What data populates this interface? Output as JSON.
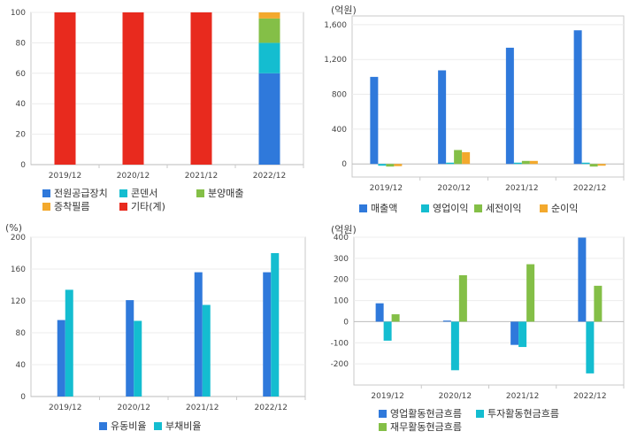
{
  "colors": {
    "blue": "#2f79db",
    "cyan": "#14bdd0",
    "green": "#84bf47",
    "orange": "#f3a92d",
    "red": "#e82a1e"
  },
  "chart_data": [
    {
      "type": "bar",
      "stacked": true,
      "unit": "",
      "categories": [
        "2019/12",
        "2020/12",
        "2021/12",
        "2022/12"
      ],
      "ylim": [
        0,
        100
      ],
      "yticks": [
        "0",
        "20",
        "40",
        "60",
        "80",
        "100"
      ],
      "series": [
        {
          "name": "전원공급장치",
          "color": "#2f79db",
          "values": [
            0,
            0,
            0,
            60
          ]
        },
        {
          "name": "콘덴서",
          "color": "#14bdd0",
          "values": [
            0,
            0,
            0,
            20
          ]
        },
        {
          "name": "분양매출",
          "color": "#84bf47",
          "values": [
            0,
            0,
            0,
            16
          ]
        },
        {
          "name": "증착필름",
          "color": "#f3a92d",
          "values": [
            0,
            0,
            0,
            4
          ]
        },
        {
          "name": "기타(계)",
          "color": "#e82a1e",
          "values": [
            100,
            100,
            100,
            0
          ]
        }
      ],
      "legend_position": "bottom"
    },
    {
      "type": "bar",
      "unit": "(억원)",
      "categories": [
        "2019/12",
        "2020/12",
        "2021/12",
        "2022/12"
      ],
      "ylim": [
        -150,
        1700
      ],
      "yticks": [
        "0",
        "400",
        "800",
        "1,200",
        "1,600"
      ],
      "series": [
        {
          "name": "매출액",
          "color": "#2f79db",
          "values": [
            1000,
            1075,
            1335,
            1535
          ]
        },
        {
          "name": "영업이익",
          "color": "#14bdd0",
          "values": [
            -20,
            15,
            15,
            15
          ]
        },
        {
          "name": "세전이익",
          "color": "#84bf47",
          "values": [
            -30,
            160,
            35,
            -30
          ]
        },
        {
          "name": "순이익",
          "color": "#f3a92d",
          "values": [
            -25,
            135,
            35,
            -20
          ]
        }
      ],
      "legend_position": "bottom"
    },
    {
      "type": "bar",
      "unit": "(%)",
      "categories": [
        "2019/12",
        "2020/12",
        "2021/12",
        "2022/12"
      ],
      "ylim": [
        0,
        200
      ],
      "yticks": [
        "0",
        "40",
        "80",
        "120",
        "160",
        "200"
      ],
      "series": [
        {
          "name": "유동비율",
          "color": "#2f79db",
          "values": [
            96,
            121,
            156,
            156
          ]
        },
        {
          "name": "부채비율",
          "color": "#14bdd0",
          "values": [
            134,
            95,
            115,
            180
          ]
        }
      ],
      "legend_position": "bottom"
    },
    {
      "type": "bar",
      "unit": "(억원)",
      "categories": [
        "2019/12",
        "2020/12",
        "2021/12",
        "2022/12"
      ],
      "ylim": [
        -300,
        400
      ],
      "yticks": [
        "-200",
        "-100",
        "0",
        "100",
        "200",
        "300",
        "400"
      ],
      "series": [
        {
          "name": "영업활동현금흐름",
          "color": "#2f79db",
          "values": [
            87,
            5,
            -110,
            398
          ]
        },
        {
          "name": "투자활동현금흐름",
          "color": "#14bdd0",
          "values": [
            -90,
            -230,
            -120,
            -245
          ]
        },
        {
          "name": "재무활동현금흐름",
          "color": "#84bf47",
          "values": [
            35,
            220,
            272,
            170
          ]
        }
      ],
      "legend_position": "bottom"
    }
  ]
}
